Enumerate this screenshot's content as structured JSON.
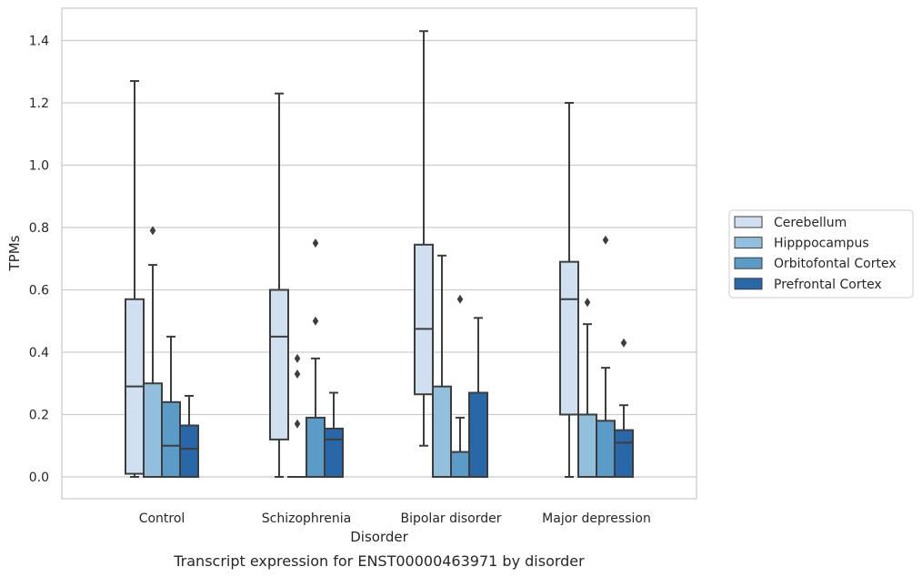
{
  "caption": "Transcript expression for ENST00000463971 by disorder",
  "chart_data": {
    "type": "boxplot",
    "xlabel": "Disorder",
    "ylabel": "TPMs",
    "ylim": [
      -0.07,
      1.5
    ],
    "yticks": [
      "0.0",
      "0.2",
      "0.4",
      "0.6",
      "0.8",
      "1.0",
      "1.2",
      "1.4"
    ],
    "grid": "horizontal",
    "legend_placement": "right",
    "categories": [
      "Control",
      "Schizophrenia",
      "Bipolar disorder",
      "Major depression"
    ],
    "series": [
      {
        "name": "Cerebellum",
        "color": "#d0e0f0",
        "boxes": [
          {
            "whislo": 0.0,
            "q1": 0.01,
            "med": 0.29,
            "q3": 0.57,
            "whishi": 1.27,
            "fliers": []
          },
          {
            "whislo": 0.0,
            "q1": 0.12,
            "med": 0.45,
            "q3": 0.6,
            "whishi": 1.23,
            "fliers": []
          },
          {
            "whislo": 0.1,
            "q1": 0.265,
            "med": 0.475,
            "q3": 0.745,
            "whishi": 1.43,
            "fliers": []
          },
          {
            "whislo": 0.0,
            "q1": 0.2,
            "med": 0.57,
            "q3": 0.69,
            "whishi": 1.2,
            "fliers": []
          }
        ]
      },
      {
        "name": "Hipppocampus",
        "color": "#92bfdb",
        "boxes": [
          {
            "whislo": 0.0,
            "q1": 0.0,
            "med": 0.0,
            "q3": 0.3,
            "whishi": 0.68,
            "fliers": [
              0.79
            ]
          },
          {
            "whislo": 0.0,
            "q1": 0.0,
            "med": 0.0,
            "q3": 0.0,
            "whishi": 0.0,
            "fliers": [
              0.17,
              0.33,
              0.38
            ]
          },
          {
            "whislo": 0.0,
            "q1": 0.0,
            "med": 0.0,
            "q3": 0.29,
            "whishi": 0.71,
            "fliers": []
          },
          {
            "whislo": 0.0,
            "q1": 0.0,
            "med": 0.0,
            "q3": 0.2,
            "whishi": 0.49,
            "fliers": [
              0.56
            ]
          }
        ]
      },
      {
        "name": "Orbitofontal Cortex",
        "color": "#5a9bc8",
        "boxes": [
          {
            "whislo": 0.0,
            "q1": 0.0,
            "med": 0.1,
            "q3": 0.24,
            "whishi": 0.45,
            "fliers": []
          },
          {
            "whislo": 0.0,
            "q1": 0.0,
            "med": 0.0,
            "q3": 0.19,
            "whishi": 0.38,
            "fliers": [
              0.5,
              0.75
            ]
          },
          {
            "whislo": 0.0,
            "q1": 0.0,
            "med": 0.0,
            "q3": 0.08,
            "whishi": 0.19,
            "fliers": [
              0.57
            ]
          },
          {
            "whislo": 0.0,
            "q1": 0.0,
            "med": 0.0,
            "q3": 0.18,
            "whishi": 0.35,
            "fliers": [
              0.76
            ]
          }
        ]
      },
      {
        "name": "Prefrontal Cortex",
        "color": "#2867a8",
        "boxes": [
          {
            "whislo": 0.0,
            "q1": 0.0,
            "med": 0.09,
            "q3": 0.165,
            "whishi": 0.26,
            "fliers": []
          },
          {
            "whislo": 0.0,
            "q1": 0.0,
            "med": 0.12,
            "q3": 0.155,
            "whishi": 0.27,
            "fliers": []
          },
          {
            "whislo": 0.0,
            "q1": 0.0,
            "med": 0.0,
            "q3": 0.27,
            "whishi": 0.51,
            "fliers": []
          },
          {
            "whislo": 0.0,
            "q1": 0.0,
            "med": 0.11,
            "q3": 0.15,
            "whishi": 0.23,
            "fliers": [
              0.43
            ]
          }
        ]
      }
    ]
  }
}
